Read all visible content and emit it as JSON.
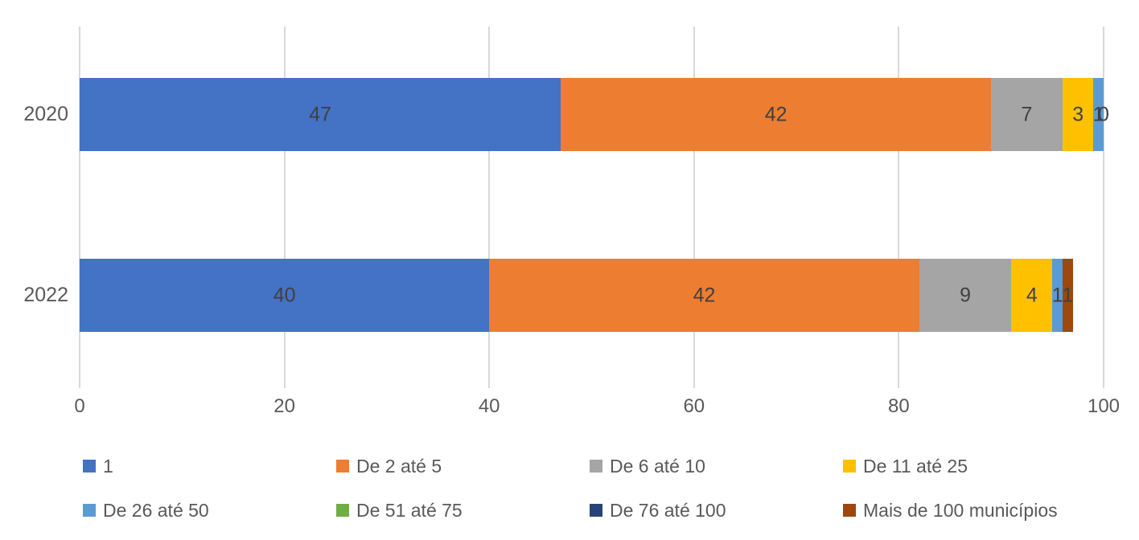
{
  "chart_data": {
    "type": "bar",
    "orientation": "horizontal",
    "stacked": true,
    "title": "",
    "xlabel": "",
    "ylabel": "",
    "categories": [
      "2020",
      "2022"
    ],
    "series": [
      {
        "name": "1",
        "color": "#4472C4",
        "values": [
          47,
          40
        ]
      },
      {
        "name": "De 2 até 5",
        "color": "#ED7D31",
        "values": [
          42,
          42
        ]
      },
      {
        "name": "De 6 até 10",
        "color": "#A5A5A5",
        "values": [
          7,
          9
        ]
      },
      {
        "name": "De 11 até 25",
        "color": "#FFC000",
        "values": [
          3,
          4
        ]
      },
      {
        "name": "De 26 até 50",
        "color": "#5B9BD5",
        "values": [
          1,
          1
        ]
      },
      {
        "name": "De 51 até 75",
        "color": "#70AD47",
        "values": [
          0,
          0
        ]
      },
      {
        "name": "De 76 até 100",
        "color": "#264478",
        "values": [
          0,
          0
        ]
      },
      {
        "name": "Mais de 100 municípios",
        "color": "#9E480E",
        "values": [
          0,
          1
        ]
      }
    ],
    "xlim": [
      0,
      100
    ],
    "x_ticks": [
      "0",
      "20",
      "40",
      "60",
      "80",
      "100"
    ],
    "grid": "vertical-only",
    "gridline_color": "#D9D9D9",
    "data_labels": true,
    "data_label_color": "#404040",
    "axis_text_color": "#595959",
    "extra_labels": [
      {
        "category_index": 0,
        "text": "0",
        "at_value": 100
      }
    ],
    "legend_position": "bottom",
    "legend_rows": 2,
    "legend_columns": 4
  }
}
